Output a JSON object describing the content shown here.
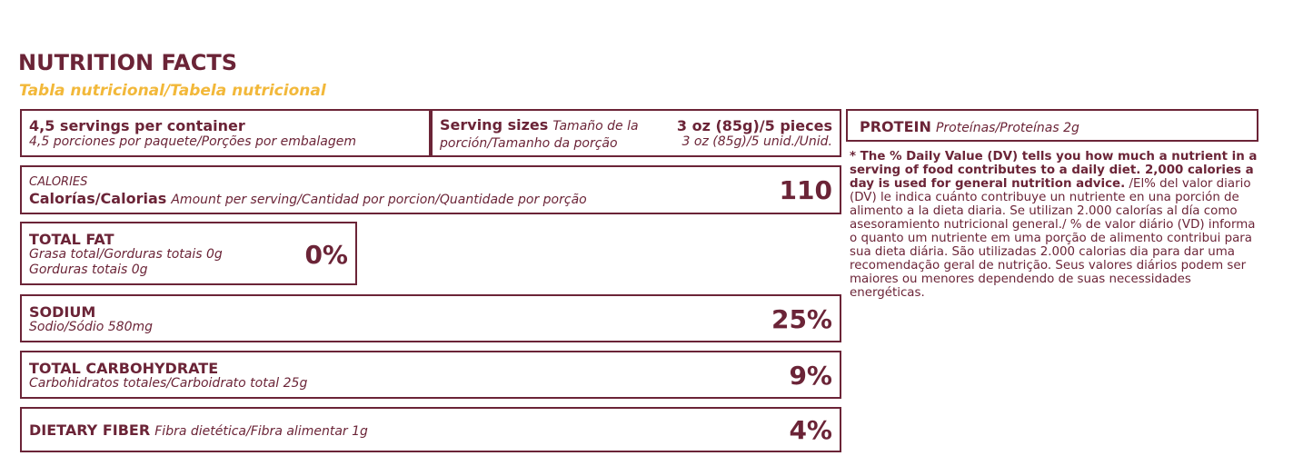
{
  "header": {
    "title": "NUTRITION FACTS",
    "subtitle": "Tabla nutricional/Tabela nutricional"
  },
  "servings": {
    "main": "4,5 servings per container",
    "translation": "4,5 porciones por paquete/Porções por embalagem"
  },
  "serving_size": {
    "label": "Serving sizes",
    "label_translation": "Tamaño de la porción/Tamanho da porção",
    "value": "3 oz (85g)/5 pieces",
    "value_translation": "3 oz (85g)/5 unid./Unid."
  },
  "calories": {
    "label": "CALORIES",
    "name": "Calorías/Calorias",
    "detail": "Amount per serving/Cantidad por porcion/Quantidade por porção",
    "value": "110"
  },
  "total_fat": {
    "name": "TOTAL FAT",
    "detail": "Grasa total/Gorduras totais 0g",
    "detail2": "Gorduras totais 0g",
    "percent": "0%"
  },
  "sodium": {
    "name": "SODIUM",
    "detail": "Sodio/Sódio 580mg",
    "percent": "25%"
  },
  "carbohydrate": {
    "name": "TOTAL CARBOHYDRATE",
    "detail": "Carbohidratos totales/Carboidrato total 25g",
    "percent": "9%"
  },
  "fiber": {
    "name": "DIETARY FIBER",
    "detail": "Fibra dietética/Fibra alimentar 1g",
    "percent": "4%"
  },
  "protein": {
    "name": "PROTEIN",
    "detail": "Proteínas/Proteínas 2g"
  },
  "footnote": {
    "bold": "* The % Daily Value (DV) tells you how much a nutrient in a serving of food contributes to a daily diet. 2,000 calories a day is used for general nutrition advice.",
    "text": " /El% del valor diario (DV) le indica cuánto contribuye un nutriente en una porción de alimento a la dieta diaria. Se utilizan 2.000 calorías al día como asesoramiento nutricional general./ % de valor diário (VD) informa o quanto um nutriente em uma porção de alimento contribui para sua dieta diária. São utilizadas 2.000 calorias dia para dar uma recomendação geral de nutrição. Seus valores diários podem ser maiores ou menores dependendo de suas necessidades energéticas."
  }
}
